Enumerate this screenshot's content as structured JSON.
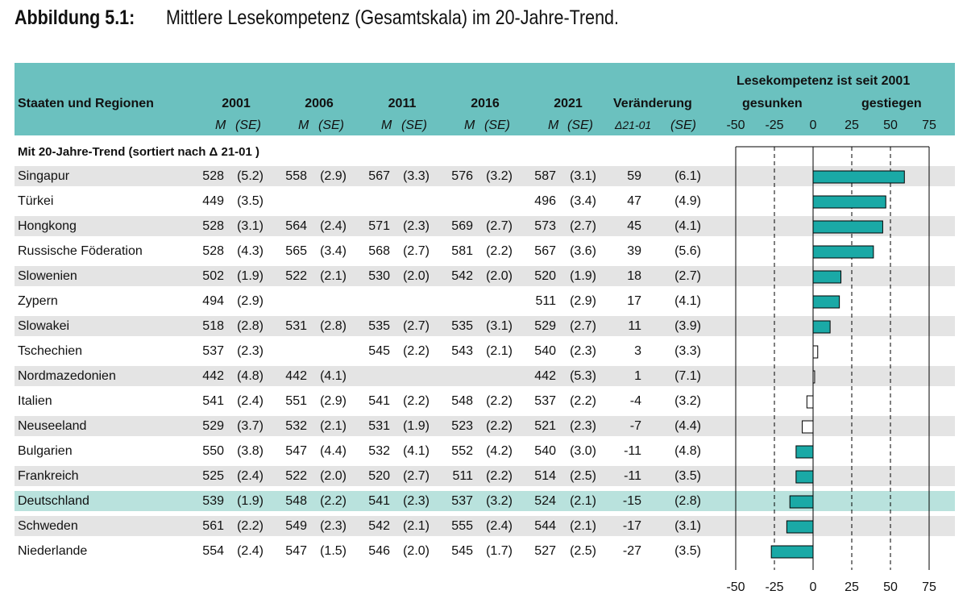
{
  "figure_label": "Abbildung 5.1:",
  "figure_title": "Mittlere Lesekompetenz (Gesamtskala) im 20-Jahre-Trend.",
  "header": {
    "col_country": "Staaten und Regionen",
    "years": [
      "2001",
      "2006",
      "2011",
      "2016",
      "2021"
    ],
    "change": "Veränderung",
    "sub_m": "M",
    "sub_se": "(SE)",
    "sub_delta": "Δ21-01",
    "chart_title": "Lesekompetenz ist seit 2001",
    "chart_down": "gesunken",
    "chart_up": "gestiegen"
  },
  "section_label": "Mit 20-Jahre-Trend (sortiert nach Δ 21-01 )",
  "highlight_color": "#b9e2dd",
  "bar_color": "#1aa9a6",
  "header_color": "#6bc1bf",
  "rows": [
    {
      "country": "Singapur",
      "m2001": "528",
      "se2001": "(5.2)",
      "m2006": "558",
      "se2006": "(2.9)",
      "m2011": "567",
      "se2011": "(3.3)",
      "m2016": "576",
      "se2016": "(3.2)",
      "m2021": "587",
      "se2021": "(3.1)",
      "delta": "59",
      "se_delta": "(6.1)"
    },
    {
      "country": "Türkei",
      "m2001": "449",
      "se2001": "(3.5)",
      "m2006": "",
      "se2006": "",
      "m2011": "",
      "se2011": "",
      "m2016": "",
      "se2016": "",
      "m2021": "496",
      "se2021": "(3.4)",
      "delta": "47",
      "se_delta": "(4.9)"
    },
    {
      "country": "Hongkong",
      "m2001": "528",
      "se2001": "(3.1)",
      "m2006": "564",
      "se2006": "(2.4)",
      "m2011": "571",
      "se2011": "(2.3)",
      "m2016": "569",
      "se2016": "(2.7)",
      "m2021": "573",
      "se2021": "(2.7)",
      "delta": "45",
      "se_delta": "(4.1)"
    },
    {
      "country": "Russische Föderation",
      "m2001": "528",
      "se2001": "(4.3)",
      "m2006": "565",
      "se2006": "(3.4)",
      "m2011": "568",
      "se2011": "(2.7)",
      "m2016": "581",
      "se2016": "(2.2)",
      "m2021": "567",
      "se2021": "(3.6)",
      "delta": "39",
      "se_delta": "(5.6)"
    },
    {
      "country": "Slowenien",
      "m2001": "502",
      "se2001": "(1.9)",
      "m2006": "522",
      "se2006": "(2.1)",
      "m2011": "530",
      "se2011": "(2.0)",
      "m2016": "542",
      "se2016": "(2.0)",
      "m2021": "520",
      "se2021": "(1.9)",
      "delta": "18",
      "se_delta": "(2.7)"
    },
    {
      "country": "Zypern",
      "m2001": "494",
      "se2001": "(2.9)",
      "m2006": "",
      "se2006": "",
      "m2011": "",
      "se2011": "",
      "m2016": "",
      "se2016": "",
      "m2021": "511",
      "se2021": "(2.9)",
      "delta": "17",
      "se_delta": "(4.1)"
    },
    {
      "country": "Slowakei",
      "m2001": "518",
      "se2001": "(2.8)",
      "m2006": "531",
      "se2006": "(2.8)",
      "m2011": "535",
      "se2011": "(2.7)",
      "m2016": "535",
      "se2016": "(3.1)",
      "m2021": "529",
      "se2021": "(2.7)",
      "delta": "11",
      "se_delta": "(3.9)"
    },
    {
      "country": "Tschechien",
      "m2001": "537",
      "se2001": "(2.3)",
      "m2006": "",
      "se2006": "",
      "m2011": "545",
      "se2011": "(2.2)",
      "m2016": "543",
      "se2016": "(2.1)",
      "m2021": "540",
      "se2021": "(2.3)",
      "delta": "3",
      "se_delta": "(3.3)"
    },
    {
      "country": "Nordmazedonien",
      "m2001": "442",
      "se2001": "(4.8)",
      "m2006": "442",
      "se2006": "(4.1)",
      "m2011": "",
      "se2011": "",
      "m2016": "",
      "se2016": "",
      "m2021": "442",
      "se2021": "(5.3)",
      "delta": "1",
      "se_delta": "(7.1)"
    },
    {
      "country": "Italien",
      "m2001": "541",
      "se2001": "(2.4)",
      "m2006": "551",
      "se2006": "(2.9)",
      "m2011": "541",
      "se2011": "(2.2)",
      "m2016": "548",
      "se2016": "(2.2)",
      "m2021": "537",
      "se2021": "(2.2)",
      "delta": "-4",
      "se_delta": "(3.2)"
    },
    {
      "country": "Neuseeland",
      "m2001": "529",
      "se2001": "(3.7)",
      "m2006": "532",
      "se2006": "(2.1)",
      "m2011": "531",
      "se2011": "(1.9)",
      "m2016": "523",
      "se2016": "(2.2)",
      "m2021": "521",
      "se2021": "(2.3)",
      "delta": "-7",
      "se_delta": "(4.4)"
    },
    {
      "country": "Bulgarien",
      "m2001": "550",
      "se2001": "(3.8)",
      "m2006": "547",
      "se2006": "(4.4)",
      "m2011": "532",
      "se2011": "(4.1)",
      "m2016": "552",
      "se2016": "(4.2)",
      "m2021": "540",
      "se2021": "(3.0)",
      "delta": "-11",
      "se_delta": "(4.8)"
    },
    {
      "country": "Frankreich",
      "m2001": "525",
      "se2001": "(2.4)",
      "m2006": "522",
      "se2006": "(2.0)",
      "m2011": "520",
      "se2011": "(2.7)",
      "m2016": "511",
      "se2016": "(2.2)",
      "m2021": "514",
      "se2021": "(2.5)",
      "delta": "-11",
      "se_delta": "(3.5)"
    },
    {
      "country": "Deutschland",
      "m2001": "539",
      "se2001": "(1.9)",
      "m2006": "548",
      "se2006": "(2.2)",
      "m2011": "541",
      "se2011": "(2.3)",
      "m2016": "537",
      "se2016": "(3.2)",
      "m2021": "524",
      "se2021": "(2.1)",
      "delta": "-15",
      "se_delta": "(2.8)"
    },
    {
      "country": "Schweden",
      "m2001": "561",
      "se2001": "(2.2)",
      "m2006": "549",
      "se2006": "(2.3)",
      "m2011": "542",
      "se2011": "(2.1)",
      "m2016": "555",
      "se2016": "(2.4)",
      "m2021": "544",
      "se2021": "(2.1)",
      "delta": "-17",
      "se_delta": "(3.1)"
    },
    {
      "country": "Niederlande",
      "m2001": "554",
      "se2001": "(2.4)",
      "m2006": "547",
      "se2006": "(1.5)",
      "m2011": "546",
      "se2011": "(2.0)",
      "m2016": "545",
      "se2016": "(1.7)",
      "m2021": "527",
      "se2021": "(2.5)",
      "delta": "-27",
      "se_delta": "(3.5)"
    }
  ],
  "chart_data": {
    "type": "bar",
    "orientation": "horizontal",
    "categories": [
      "Singapur",
      "Türkei",
      "Hongkong",
      "Russische Föderation",
      "Slowenien",
      "Zypern",
      "Slowakei",
      "Tschechien",
      "Nordmazedonien",
      "Italien",
      "Neuseeland",
      "Bulgarien",
      "Frankreich",
      "Deutschland",
      "Schweden",
      "Niederlande"
    ],
    "values": [
      59,
      47,
      45,
      39,
      18,
      17,
      11,
      3,
      1,
      -4,
      -7,
      -11,
      -11,
      -15,
      -17,
      -27
    ],
    "significant": [
      true,
      true,
      true,
      true,
      true,
      true,
      true,
      false,
      false,
      false,
      false,
      true,
      true,
      true,
      true,
      true
    ],
    "xlim": [
      -50,
      75
    ],
    "ticks": [
      "-50",
      "-25",
      "0",
      "25",
      "50",
      "75"
    ],
    "reference_lines": [
      -25,
      25,
      50
    ],
    "title": "Lesekompetenz ist seit 2001",
    "left_label": "gesunken",
    "right_label": "gestiegen"
  }
}
